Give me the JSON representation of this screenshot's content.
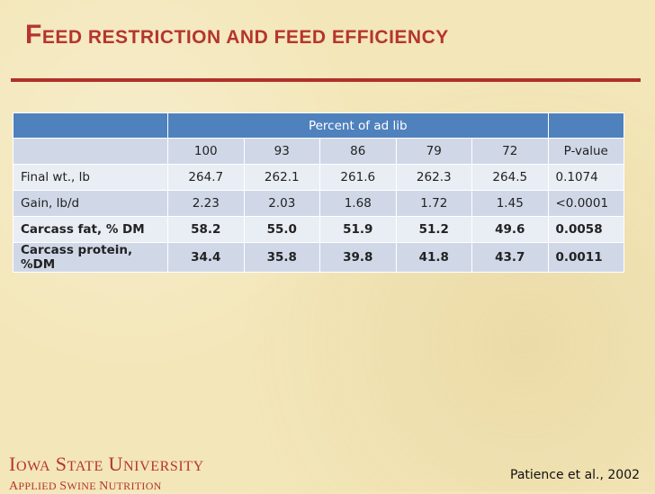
{
  "title": {
    "first_letter": "F",
    "rest": "EED RESTRICTION AND FEED EFFICIENCY"
  },
  "table": {
    "group_header": "Percent of ad lib",
    "columns": [
      "100",
      "93",
      "86",
      "79",
      "72",
      "P-value"
    ],
    "rows": [
      {
        "label": "Final wt., lb",
        "values": [
          "264.7",
          "262.1",
          "261.6",
          "262.3",
          "264.5"
        ],
        "p": "0.1074",
        "bold": false
      },
      {
        "label": "Gain, lb/d",
        "values": [
          "2.23",
          "2.03",
          "1.68",
          "1.72",
          "1.45"
        ],
        "p": "<0.0001",
        "bold": false
      },
      {
        "label": "Carcass fat, % DM",
        "values": [
          "58.2",
          "55.0",
          "51.9",
          "51.2",
          "49.6"
        ],
        "p": "0.0058",
        "bold": true
      },
      {
        "label": "Carcass protein, %DM",
        "values": [
          "34.4",
          "35.8",
          "39.8",
          "41.8",
          "43.7"
        ],
        "p": "0.0011",
        "bold": true
      }
    ]
  },
  "footer": {
    "university": {
      "w1_cap": "I",
      "w1_rest": "OWA",
      "w2_cap": "S",
      "w2_rest": "TATE",
      "w3_cap": "U",
      "w3_rest": "NIVERSITY"
    },
    "program": {
      "w1_cap": "A",
      "w1_rest": "PPLIED",
      "w2_cap": "S",
      "w2_rest": "WINE",
      "w3_cap": "N",
      "w3_rest": "UTRITION"
    },
    "citation": "Patience et al., 2002"
  },
  "colors": {
    "accent": "#b5352e",
    "header_blue": "#4f81bd",
    "row_dark": "#d0d8e8",
    "row_light": "#e9edf4",
    "background": "#f3e6b8"
  }
}
